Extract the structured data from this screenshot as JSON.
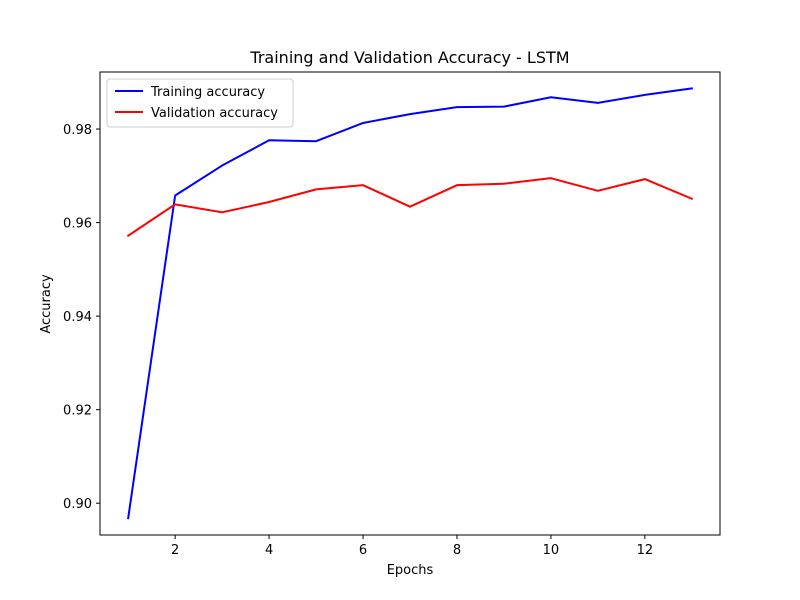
{
  "chart_data": {
    "type": "line",
    "title": "Training and Validation Accuracy - LSTM",
    "xlabel": "Epochs",
    "ylabel": "Accuracy",
    "x": [
      1,
      2,
      3,
      4,
      5,
      6,
      7,
      8,
      9,
      10,
      11,
      12,
      13
    ],
    "xlim": [
      0.4,
      13.6
    ],
    "ylim": [
      0.8932,
      0.9922
    ],
    "xticks": [
      2,
      4,
      6,
      8,
      10,
      12
    ],
    "xtick_labels": [
      "2",
      "4",
      "6",
      "8",
      "10",
      "12"
    ],
    "yticks": [
      0.9,
      0.92,
      0.94,
      0.96,
      0.98
    ],
    "ytick_labels": [
      "0.90",
      "0.92",
      "0.94",
      "0.96",
      "0.98"
    ],
    "grid": false,
    "legend_position": "top-left",
    "series": [
      {
        "name": "Training accuracy",
        "color": "#0000ff",
        "values": [
          0.8968,
          0.9658,
          0.9722,
          0.9776,
          0.9774,
          0.9813,
          0.9832,
          0.9847,
          0.9848,
          0.9868,
          0.9856,
          0.9873,
          0.9887
        ]
      },
      {
        "name": "Validation accuracy",
        "color": "#ff0000",
        "values": [
          0.9572,
          0.9639,
          0.9622,
          0.9644,
          0.9671,
          0.968,
          0.9634,
          0.968,
          0.9683,
          0.9695,
          0.9668,
          0.9693,
          0.9651
        ]
      }
    ]
  }
}
